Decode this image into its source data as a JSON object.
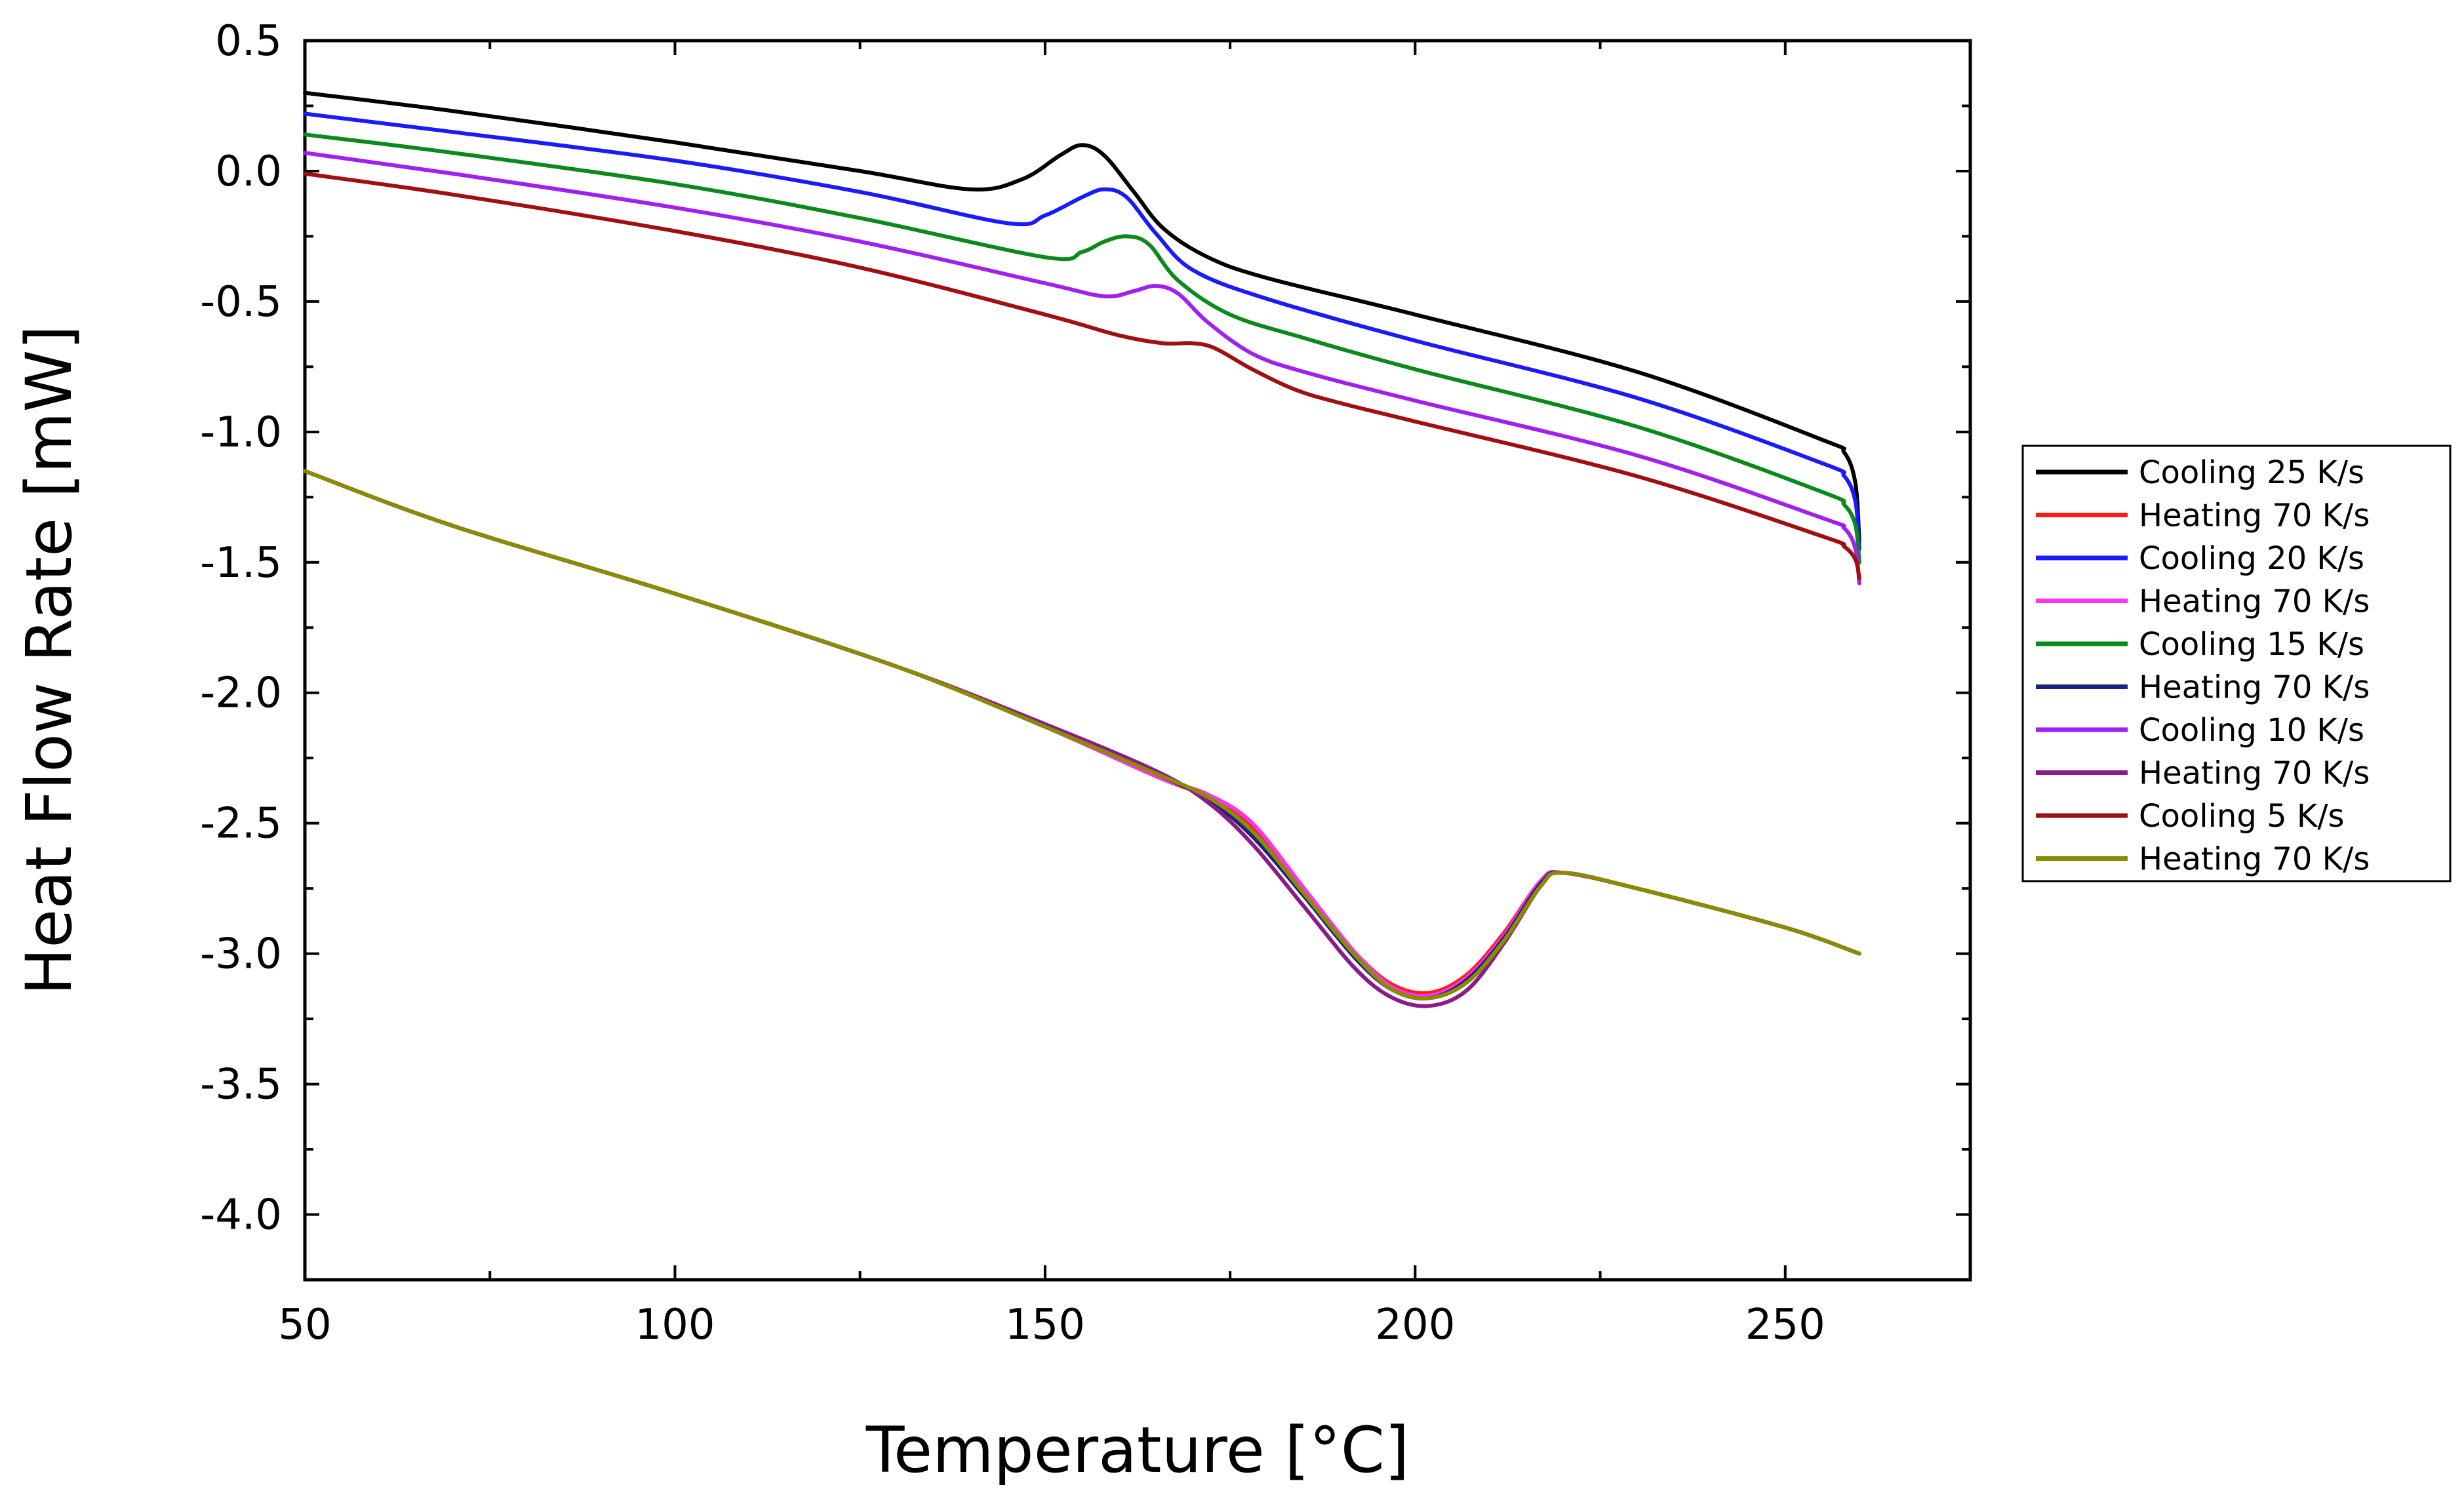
{
  "chart_data": {
    "type": "line",
    "title": "",
    "xlabel": "Temperature [°C]",
    "ylabel": "Heat Flow Rate [mW]",
    "xlim": [
      50,
      275
    ],
    "ylim": [
      -4.25,
      0.5
    ],
    "xticks": [
      50,
      100,
      150,
      200,
      250
    ],
    "xtick_labels": [
      "50",
      "100",
      "150",
      "200",
      "250"
    ],
    "yticks": [
      0.5,
      0.0,
      -0.5,
      -1.0,
      -1.5,
      -2.0,
      -2.5,
      -3.0,
      -3.5,
      -4.0
    ],
    "ytick_labels": [
      "0.5",
      "0.0",
      "-0.5",
      "-1.0",
      "-1.5",
      "-2.0",
      "-2.5",
      "-3.0",
      "-3.5",
      "-4.0"
    ],
    "grid": false,
    "legend_position": "right",
    "series": [
      {
        "name": "Cooling 25 K/s",
        "color": "#000000",
        "x": [
          50,
          70,
          100,
          125,
          140,
          147,
          152,
          155,
          158,
          162,
          166,
          172,
          180,
          200,
          230,
          255,
          258,
          259.5,
          260
        ],
        "y": [
          0.3,
          0.23,
          0.11,
          0.0,
          -0.07,
          -0.03,
          0.06,
          0.1,
          0.06,
          -0.08,
          -0.22,
          -0.33,
          -0.41,
          -0.55,
          -0.77,
          -1.03,
          -1.08,
          -1.2,
          -1.42
        ]
      },
      {
        "name": "Heating 70 K/s",
        "color": "#ff1a1a",
        "x": [
          50,
          70,
          100,
          130,
          150,
          165,
          172,
          178,
          185,
          192,
          197,
          202,
          207,
          212,
          217,
          220,
          230,
          250,
          260
        ],
        "y": [
          -1.15,
          -1.36,
          -1.62,
          -1.9,
          -2.13,
          -2.32,
          -2.4,
          -2.52,
          -2.76,
          -3.0,
          -3.12,
          -3.15,
          -3.08,
          -2.92,
          -2.72,
          -2.69,
          -2.75,
          -2.9,
          -3.0
        ]
      },
      {
        "name": "Cooling 20 K/s",
        "color": "#1a1aff",
        "x": [
          50,
          70,
          100,
          125,
          145,
          150,
          155,
          158,
          161,
          165,
          170,
          180,
          200,
          230,
          255,
          258,
          259.5,
          260
        ],
        "y": [
          0.22,
          0.15,
          0.04,
          -0.08,
          -0.2,
          -0.17,
          -0.1,
          -0.07,
          -0.1,
          -0.24,
          -0.38,
          -0.49,
          -0.65,
          -0.87,
          -1.12,
          -1.17,
          -1.27,
          -1.45
        ]
      },
      {
        "name": "Heating 70 K/s",
        "color": "#ff33ee",
        "x": [
          50,
          70,
          100,
          130,
          150,
          165,
          172,
          178,
          185,
          192,
          197,
          202,
          207,
          212,
          217,
          220,
          230,
          250,
          260
        ],
        "y": [
          -1.15,
          -1.36,
          -1.62,
          -1.9,
          -2.13,
          -2.32,
          -2.39,
          -2.5,
          -2.75,
          -3.0,
          -3.13,
          -3.16,
          -3.09,
          -2.93,
          -2.72,
          -2.69,
          -2.75,
          -2.9,
          -3.0
        ]
      },
      {
        "name": "Cooling 15 K/s",
        "color": "#0a8a1a",
        "x": [
          50,
          70,
          100,
          125,
          150,
          155,
          158,
          161,
          164,
          168,
          175,
          185,
          200,
          230,
          255,
          258,
          259.5,
          260
        ],
        "y": [
          0.14,
          0.07,
          -0.05,
          -0.18,
          -0.33,
          -0.31,
          -0.27,
          -0.25,
          -0.28,
          -0.42,
          -0.55,
          -0.64,
          -0.76,
          -0.98,
          -1.23,
          -1.28,
          -1.36,
          -1.5
        ]
      },
      {
        "name": "Heating 70 K/s",
        "color": "#1a237e",
        "x": [
          50,
          70,
          100,
          130,
          150,
          165,
          172,
          178,
          185,
          192,
          197,
          202,
          207,
          212,
          217,
          220,
          230,
          250,
          260
        ],
        "y": [
          -1.15,
          -1.36,
          -1.62,
          -1.9,
          -2.13,
          -2.31,
          -2.41,
          -2.55,
          -2.78,
          -3.02,
          -3.14,
          -3.17,
          -3.1,
          -2.94,
          -2.73,
          -2.69,
          -2.75,
          -2.9,
          -3.0
        ]
      },
      {
        "name": "Cooling 10 K/s",
        "color": "#a020f0",
        "x": [
          50,
          70,
          100,
          125,
          150,
          158,
          162,
          165,
          168,
          172,
          178,
          185,
          200,
          230,
          255,
          258,
          259.5,
          260
        ],
        "y": [
          0.07,
          -0.01,
          -0.14,
          -0.27,
          -0.43,
          -0.48,
          -0.46,
          -0.44,
          -0.47,
          -0.58,
          -0.7,
          -0.77,
          -0.88,
          -1.09,
          -1.33,
          -1.37,
          -1.45,
          -1.58
        ]
      },
      {
        "name": "Heating 70 K/s",
        "color": "#8b1a8b",
        "x": [
          50,
          70,
          100,
          130,
          150,
          165,
          172,
          178,
          185,
          192,
          197,
          202,
          207,
          212,
          217,
          220,
          230,
          250,
          260
        ],
        "y": [
          -1.15,
          -1.36,
          -1.62,
          -1.9,
          -2.12,
          -2.3,
          -2.42,
          -2.58,
          -2.82,
          -3.06,
          -3.17,
          -3.2,
          -3.14,
          -2.96,
          -2.74,
          -2.69,
          -2.75,
          -2.9,
          -3.0
        ]
      },
      {
        "name": "Cooling 5 K/s",
        "color": "#a01010",
        "x": [
          50,
          70,
          100,
          125,
          150,
          160,
          166,
          170,
          173,
          178,
          184,
          190,
          200,
          230,
          255,
          258,
          259.5,
          260
        ],
        "y": [
          -0.01,
          -0.09,
          -0.23,
          -0.37,
          -0.55,
          -0.63,
          -0.66,
          -0.66,
          -0.68,
          -0.76,
          -0.84,
          -0.89,
          -0.96,
          -1.17,
          -1.4,
          -1.44,
          -1.49,
          -1.56
        ]
      },
      {
        "name": "Heating 70 K/s",
        "color": "#8b8b00",
        "x": [
          50,
          70,
          100,
          130,
          150,
          165,
          172,
          178,
          185,
          192,
          197,
          202,
          207,
          212,
          217,
          220,
          230,
          250,
          260
        ],
        "y": [
          -1.15,
          -1.36,
          -1.62,
          -1.9,
          -2.13,
          -2.31,
          -2.4,
          -2.53,
          -2.77,
          -3.01,
          -3.14,
          -3.17,
          -3.11,
          -2.95,
          -2.74,
          -2.69,
          -2.75,
          -2.9,
          -3.0
        ]
      }
    ]
  }
}
